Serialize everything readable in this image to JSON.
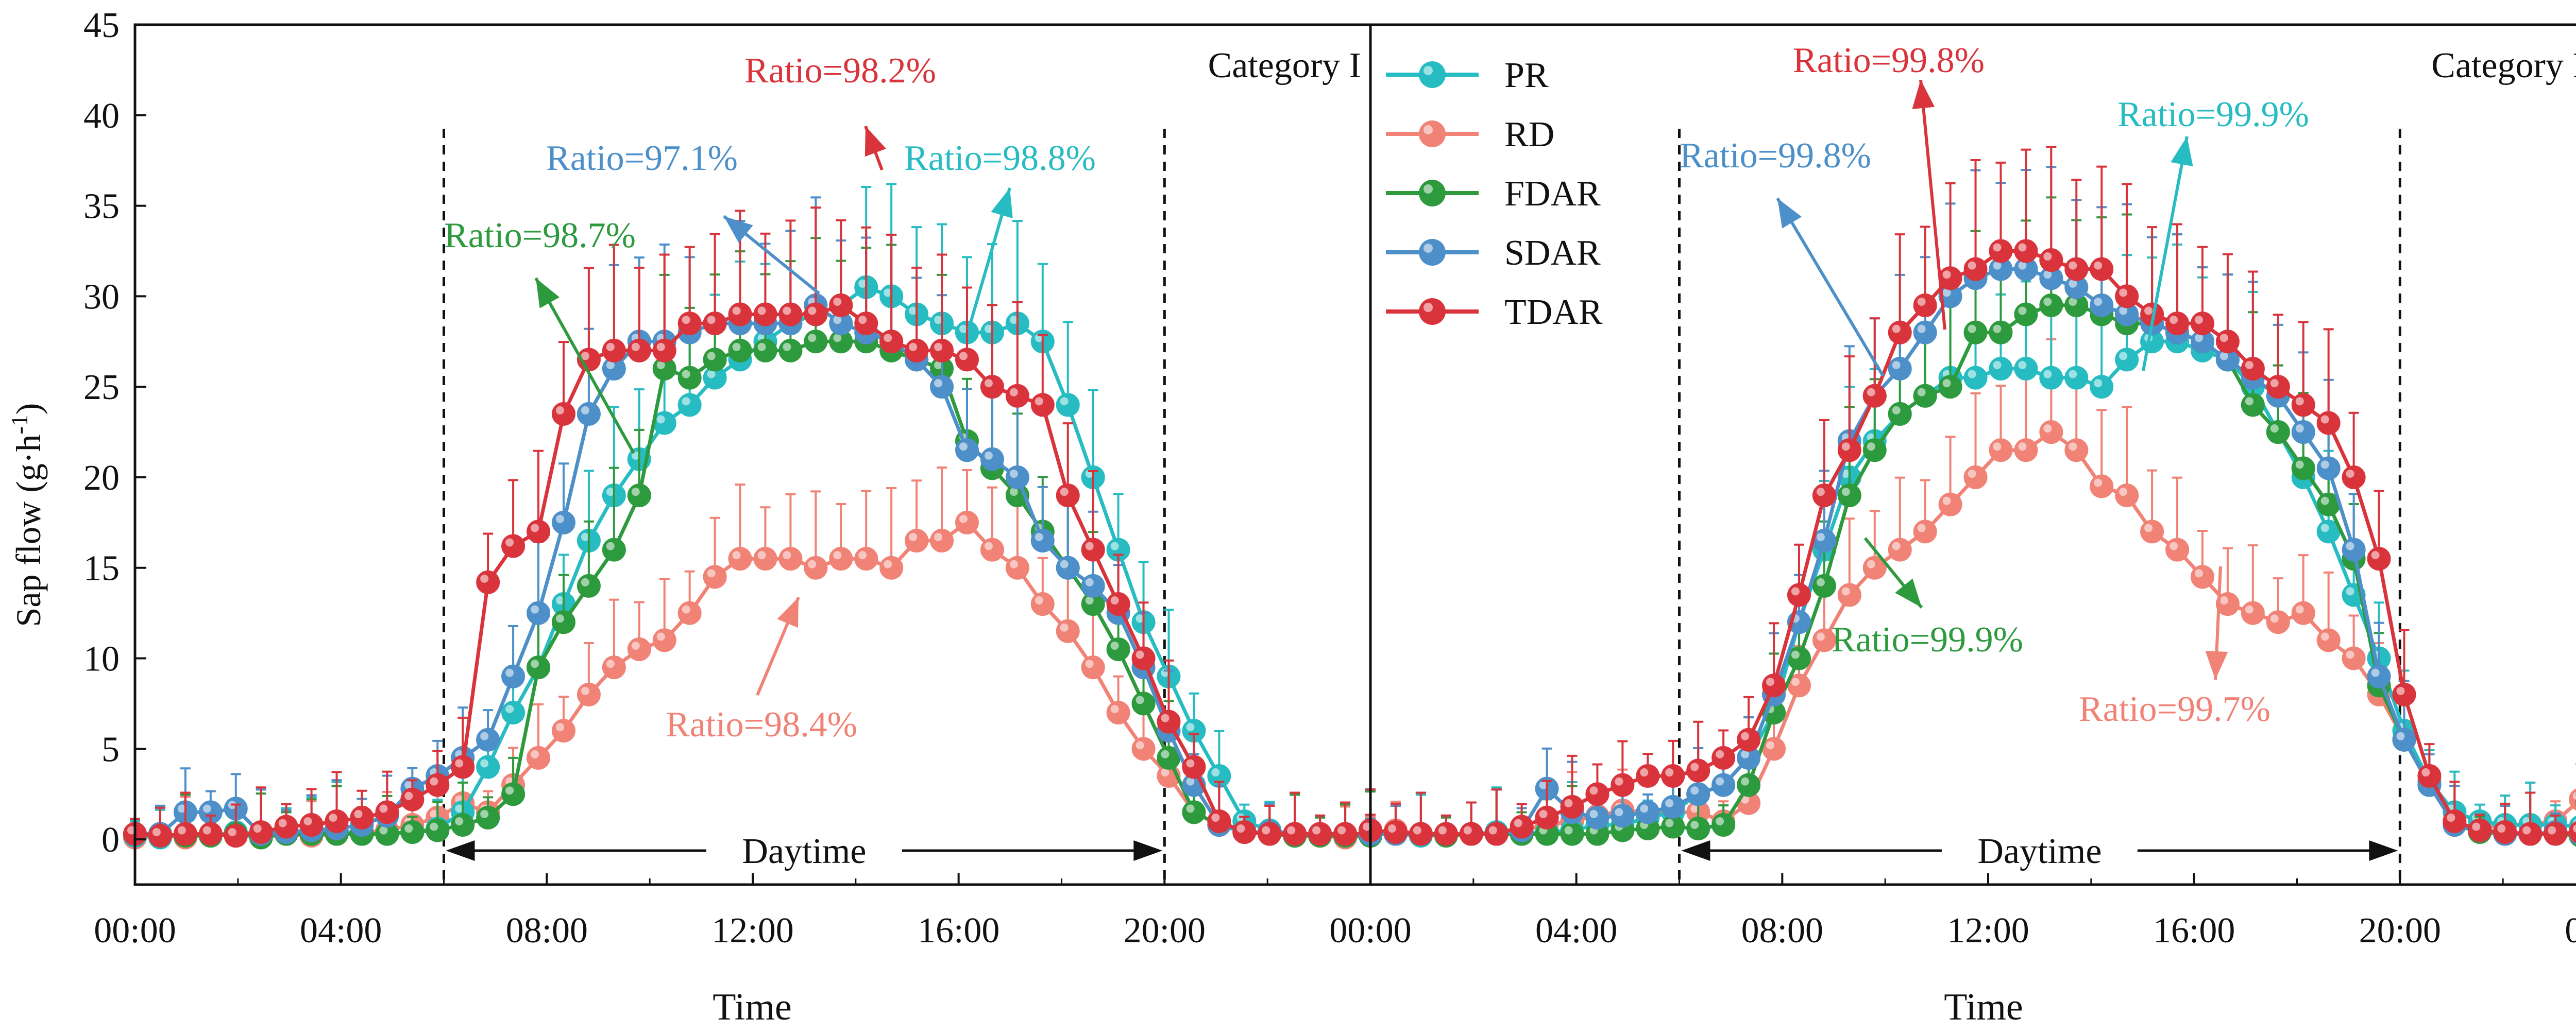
{
  "chart_data": {
    "type": "line",
    "ylabel": "Sap flow (g·h⁻¹)",
    "xlabel": "Time",
    "ylim": [
      -2.5,
      45
    ],
    "xlim_hours": [
      0,
      24
    ],
    "y_ticks": [
      "0",
      "5",
      "10",
      "15",
      "20",
      "25",
      "30",
      "35",
      "40",
      "45"
    ],
    "x_ticks": [
      "00:00",
      "04:00",
      "08:00",
      "12:00",
      "16:00",
      "20:00",
      "00:00"
    ],
    "colors": {
      "PR": "#27bcc2",
      "RD": "#f08276",
      "FDAR": "#2e9a3e",
      "SDAR": "#4d8fc8",
      "TDAR": "#d9343c"
    },
    "legend": {
      "placement": "top-left of right panel",
      "entries": [
        "PR",
        "RD",
        "FDAR",
        "SDAR",
        "TDAR"
      ]
    },
    "daytime_label": "Daytime",
    "daytime_hours": [
      6,
      20
    ],
    "panels": [
      {
        "category_label": "Category I",
        "series": [
          {
            "name": "PR",
            "values": [
              0.2,
              0.1,
              0.3,
              0.2,
              0.4,
              0.3,
              0.5,
              0.4,
              0.5,
              0.3,
              0.3,
              0.4,
              0.6,
              1.5,
              4.0,
              7.0,
              9.5,
              13.0,
              16.5,
              19.0,
              21.0,
              23.0,
              24.0,
              25.5,
              26.5,
              27.5,
              28.5,
              29.0,
              29.5,
              30.5,
              30.0,
              29.0,
              28.5,
              28.0,
              28.0,
              28.5,
              27.5,
              24.0,
              20.0,
              16.0,
              12.0,
              9.0,
              6.0,
              3.5,
              1.0,
              0.5,
              0.3,
              0.3,
              0.2,
              0.3
            ]
          },
          {
            "name": "RD",
            "values": [
              0.1,
              0.2,
              0.1,
              0.3,
              0.2,
              0.3,
              0.3,
              0.2,
              0.3,
              0.4,
              0.5,
              0.8,
              1.2,
              2.0,
              1.5,
              3.0,
              4.5,
              6.0,
              8.0,
              9.5,
              10.5,
              11.0,
              12.5,
              14.5,
              15.5,
              15.5,
              15.5,
              15.0,
              15.5,
              15.5,
              15.0,
              16.5,
              16.5,
              17.5,
              16.0,
              15.0,
              13.0,
              11.5,
              9.5,
              7.0,
              5.0,
              3.5,
              1.5,
              0.8,
              0.5,
              0.3,
              0.2,
              0.2,
              0.1,
              0.2
            ]
          },
          {
            "name": "FDAR",
            "values": [
              0.3,
              0.3,
              0.2,
              0.2,
              0.3,
              0.1,
              0.3,
              0.3,
              0.3,
              0.3,
              0.3,
              0.4,
              0.5,
              0.8,
              1.2,
              2.5,
              9.5,
              12.0,
              14.0,
              16.0,
              19.0,
              26.0,
              25.5,
              26.5,
              27.0,
              27.0,
              27.0,
              27.5,
              27.5,
              27.5,
              27.0,
              26.5,
              26.0,
              22.0,
              20.5,
              19.0,
              17.0,
              15.0,
              13.0,
              10.5,
              7.5,
              4.5,
              1.5,
              0.8,
              0.4,
              0.3,
              0.2,
              0.2,
              0.2,
              0.2
            ]
          },
          {
            "name": "SDAR",
            "values": [
              0.3,
              0.3,
              1.5,
              1.5,
              1.7,
              0.3,
              0.4,
              0.5,
              0.6,
              0.8,
              1.3,
              2.8,
              3.5,
              4.5,
              5.5,
              9.0,
              12.5,
              17.5,
              23.5,
              26.0,
              27.5,
              27.5,
              28.0,
              28.5,
              28.5,
              28.5,
              28.5,
              29.5,
              28.5,
              28.0,
              27.5,
              26.5,
              25.0,
              21.5,
              21.0,
              20.0,
              16.5,
              15.0,
              14.0,
              12.5,
              9.5,
              6.0,
              3.0,
              0.8,
              0.4,
              0.4,
              0.3,
              0.3,
              0.3,
              0.3
            ]
          },
          {
            "name": "TDAR",
            "values": [
              0.3,
              0.2,
              0.3,
              0.3,
              0.2,
              0.4,
              0.7,
              0.8,
              1.0,
              1.2,
              1.5,
              2.2,
              3.0,
              4.0,
              14.2,
              16.2,
              17.0,
              23.5,
              26.5,
              27.0,
              27.0,
              27.0,
              28.5,
              28.5,
              29.0,
              29.0,
              29.0,
              29.0,
              29.5,
              28.5,
              27.5,
              27.0,
              27.0,
              26.5,
              25.0,
              24.5,
              24.0,
              19.0,
              16.0,
              13.0,
              10.0,
              6.5,
              4.0,
              1.0,
              0.4,
              0.3,
              0.3,
              0.3,
              0.3,
              0.3
            ]
          }
        ],
        "annotations": [
          {
            "text": "Ratio=98.2%",
            "color": "TDAR"
          },
          {
            "text": "Ratio=97.1%",
            "color": "SDAR"
          },
          {
            "text": "Ratio=98.8%",
            "color": "PR"
          },
          {
            "text": "Ratio=98.7%",
            "color": "FDAR"
          },
          {
            "text": "Ratio=98.4%",
            "color": "RD"
          }
        ]
      },
      {
        "category_label": "Category II",
        "series": [
          {
            "name": "PR",
            "values": [
              0.3,
              0.3,
              0.2,
              0.3,
              0.3,
              0.4,
              0.3,
              0.4,
              0.5,
              0.8,
              0.8,
              1.2,
              1.5,
              2.5,
              3.0,
              4.5,
              7.0,
              12.0,
              16.0,
              20.0,
              22.0,
              23.5,
              24.5,
              25.5,
              25.5,
              26.0,
              26.0,
              25.5,
              25.5,
              25.0,
              26.5,
              27.5,
              27.5,
              27.0,
              26.5,
              25.0,
              22.5,
              20.0,
              17.0,
              13.5,
              10.0,
              6.0,
              3.2,
              1.5,
              1.0,
              0.8,
              0.8,
              0.8,
              0.7,
              0.5
            ]
          },
          {
            "name": "RD",
            "values": [
              0.4,
              0.5,
              0.3,
              0.3,
              0.3,
              0.3,
              0.5,
              0.8,
              1.0,
              1.3,
              1.6,
              1.5,
              1.5,
              1.5,
              1.0,
              2.0,
              5.0,
              8.5,
              11.0,
              13.5,
              15.0,
              16.0,
              17.0,
              18.5,
              20.0,
              21.5,
              21.5,
              22.5,
              21.5,
              19.5,
              19.0,
              17.0,
              16.0,
              14.5,
              13.0,
              12.5,
              12.0,
              12.5,
              11.0,
              10.0,
              8.0,
              5.5,
              3.2,
              0.8,
              0.6,
              0.8,
              0.8,
              1.0,
              2.2,
              1.0
            ]
          },
          {
            "name": "FDAR",
            "values": [
              0.3,
              0.3,
              0.3,
              0.2,
              0.3,
              0.3,
              0.3,
              0.3,
              0.3,
              0.3,
              0.5,
              0.6,
              0.7,
              0.6,
              0.8,
              3.0,
              7.0,
              10.0,
              14.0,
              19.0,
              21.5,
              23.5,
              24.5,
              25.0,
              28.0,
              28.0,
              29.0,
              29.5,
              29.5,
              29.0,
              28.5,
              28.5,
              28.0,
              27.5,
              26.5,
              24.0,
              22.5,
              20.5,
              18.5,
              15.5,
              8.5,
              5.5,
              3.0,
              0.8,
              0.4,
              0.3,
              0.3,
              0.3,
              0.2,
              0.3
            ]
          },
          {
            "name": "SDAR",
            "values": [
              0.3,
              0.3,
              0.3,
              0.3,
              0.3,
              0.3,
              0.5,
              2.8,
              1.5,
              1.2,
              1.3,
              1.5,
              1.8,
              2.5,
              3.0,
              4.5,
              8.0,
              12.0,
              16.5,
              22.0,
              24.5,
              26.0,
              28.0,
              30.0,
              31.0,
              31.5,
              31.5,
              31.0,
              30.5,
              29.5,
              29.0,
              28.5,
              28.0,
              27.5,
              26.5,
              25.5,
              24.5,
              22.5,
              20.5,
              16.0,
              9.0,
              5.5,
              3.0,
              0.8,
              0.5,
              0.3,
              0.3,
              0.4,
              0.3,
              0.3
            ]
          },
          {
            "name": "TDAR",
            "values": [
              0.5,
              0.4,
              0.3,
              0.3,
              0.3,
              0.3,
              0.7,
              1.2,
              1.8,
              2.5,
              3.0,
              3.5,
              3.5,
              3.8,
              4.5,
              5.5,
              8.5,
              13.5,
              19.0,
              21.5,
              24.5,
              28.0,
              29.5,
              31.0,
              31.5,
              32.5,
              32.5,
              32.0,
              31.5,
              31.5,
              30.0,
              29.0,
              28.5,
              28.5,
              27.5,
              26.0,
              25.0,
              24.0,
              23.0,
              20.0,
              15.5,
              8.0,
              3.5,
              1.0,
              0.5,
              0.4,
              0.3,
              0.3,
              0.4,
              0.3
            ]
          }
        ],
        "annotations": [
          {
            "text": "Ratio=99.8%",
            "color": "TDAR"
          },
          {
            "text": "Ratio=99.8%",
            "color": "SDAR"
          },
          {
            "text": "Ratio=99.9%",
            "color": "PR"
          },
          {
            "text": "Ratio=99.9%",
            "color": "FDAR"
          },
          {
            "text": "Ratio=99.7%",
            "color": "RD"
          }
        ]
      }
    ]
  }
}
